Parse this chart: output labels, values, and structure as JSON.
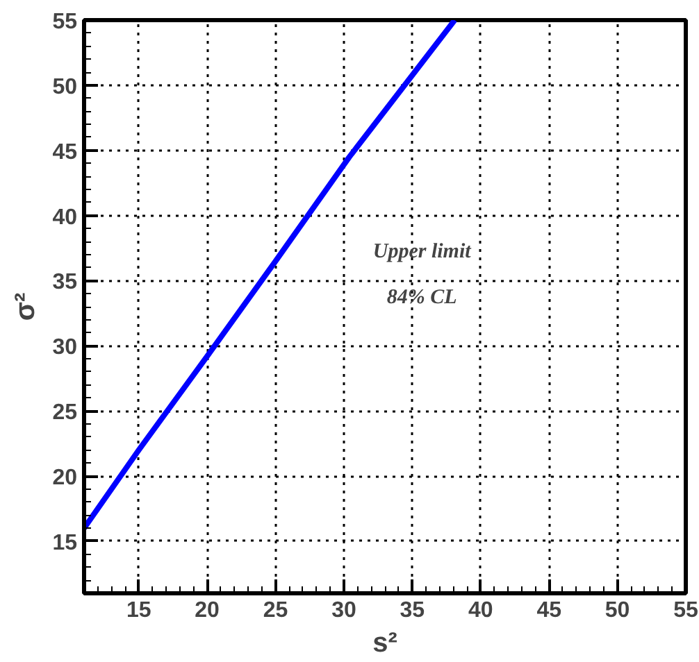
{
  "chart_data": {
    "type": "line",
    "xlabel": "s²",
    "ylabel": "σ²",
    "x": [
      11,
      15,
      20,
      25,
      30.4,
      34.8,
      38.1
    ],
    "series": [
      {
        "color": "#0000ff",
        "values": [
          16,
          22,
          29.2,
          36.5,
          44.5,
          50.5,
          55
        ]
      }
    ],
    "xlim": [
      11,
      55
    ],
    "ylim": [
      11,
      55
    ],
    "xticks": [
      15,
      20,
      25,
      30,
      35,
      40,
      45,
      50,
      55
    ],
    "yticks": [
      15,
      20,
      25,
      30,
      35,
      40,
      45,
      50,
      55
    ],
    "grid": true,
    "line_style": "solid",
    "annotations": [
      "Upper limit",
      "84% CL"
    ]
  }
}
